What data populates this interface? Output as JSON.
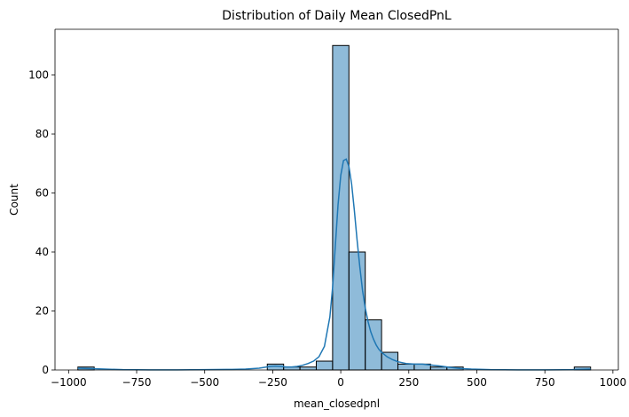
{
  "chart_data": {
    "type": "bar",
    "title": "Distribution of Daily Mean ClosedPnL",
    "xlabel": "mean_closedpnl",
    "ylabel": "Count",
    "xlim": [
      -1050,
      1020
    ],
    "ylim": [
      0,
      115.5
    ],
    "xticks": [
      -1000,
      -750,
      -500,
      -250,
      0,
      250,
      500,
      750,
      1000
    ],
    "xtick_labels": [
      "−1000",
      "−750",
      "−500",
      "−250",
      "0",
      "250",
      "500",
      "750",
      "1000"
    ],
    "yticks": [
      0,
      20,
      40,
      60,
      80,
      100
    ],
    "ytick_labels": [
      "0",
      "20",
      "40",
      "60",
      "80",
      "100"
    ],
    "grid": false,
    "bar_color": "#1f77b4",
    "bar_opacity": 0.5,
    "edge_color": "#000000",
    "kde_color": "#1f77b4",
    "bins": [
      {
        "x0": -966,
        "x1": -906,
        "count": 1
      },
      {
        "x0": -270,
        "x1": -210,
        "count": 2
      },
      {
        "x0": -210,
        "x1": -150,
        "count": 1
      },
      {
        "x0": -150,
        "x1": -90,
        "count": 1
      },
      {
        "x0": -90,
        "x1": -30,
        "count": 3
      },
      {
        "x0": -30,
        "x1": 30,
        "count": 110
      },
      {
        "x0": 30,
        "x1": 90,
        "count": 40
      },
      {
        "x0": 90,
        "x1": 150,
        "count": 17
      },
      {
        "x0": 150,
        "x1": 210,
        "count": 6
      },
      {
        "x0": 210,
        "x1": 270,
        "count": 2
      },
      {
        "x0": 270,
        "x1": 330,
        "count": 2
      },
      {
        "x0": 330,
        "x1": 390,
        "count": 1
      },
      {
        "x0": 390,
        "x1": 450,
        "count": 1
      },
      {
        "x0": 858,
        "x1": 918,
        "count": 1
      }
    ],
    "kde": {
      "x": [
        -966,
        -900,
        -800,
        -700,
        -600,
        -500,
        -400,
        -350,
        -300,
        -280,
        -260,
        -240,
        -220,
        -200,
        -180,
        -160,
        -140,
        -120,
        -100,
        -80,
        -60,
        -40,
        -30,
        -20,
        -10,
        0,
        10,
        20,
        30,
        40,
        50,
        60,
        70,
        80,
        90,
        100,
        110,
        120,
        130,
        140,
        150,
        170,
        190,
        210,
        240,
        270,
        300,
        330,
        360,
        400,
        440,
        480,
        550,
        650,
        750,
        850,
        918
      ],
      "y": [
        0.6,
        0.4,
        0.1,
        0.05,
        0.05,
        0.1,
        0.2,
        0.3,
        0.6,
        0.9,
        1.2,
        1.3,
        1.2,
        1.0,
        1.0,
        1.2,
        1.6,
        2.2,
        3.0,
        4.5,
        8.0,
        18.0,
        28.0,
        42.0,
        56.0,
        66.0,
        71.0,
        71.5,
        69.0,
        63.0,
        54.0,
        44.0,
        35.0,
        27.0,
        21.0,
        16.5,
        13.0,
        10.5,
        8.5,
        7.0,
        6.0,
        4.5,
        3.5,
        2.8,
        2.2,
        2.0,
        2.0,
        1.7,
        1.4,
        0.9,
        0.5,
        0.3,
        0.1,
        0.05,
        0.05,
        0.1,
        0.3
      ]
    }
  }
}
